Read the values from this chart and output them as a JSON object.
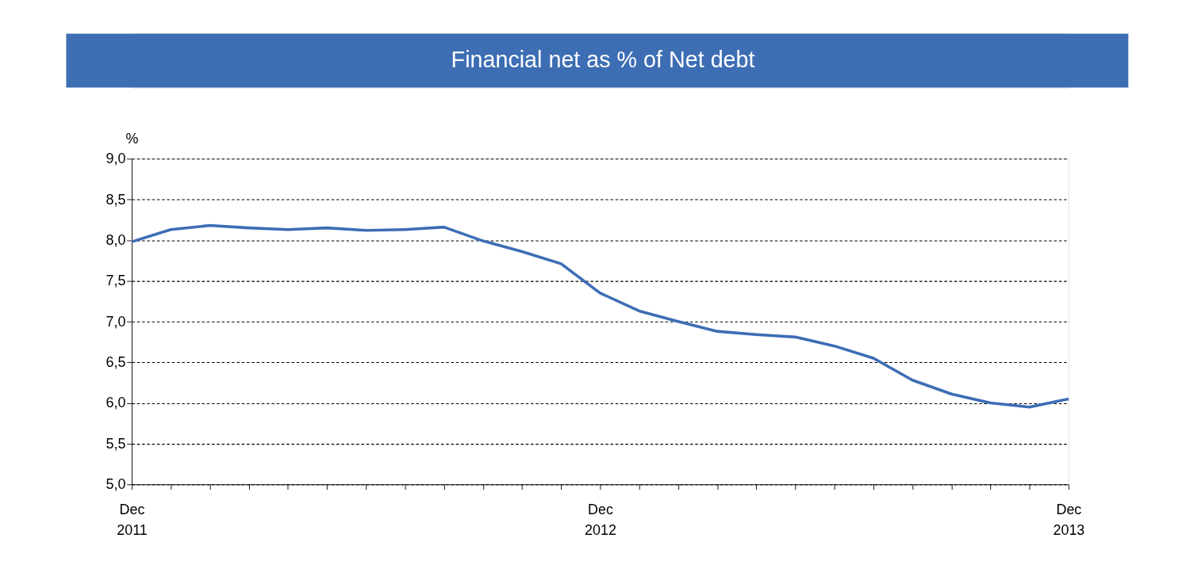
{
  "chart_data": {
    "type": "line",
    "title": "Financial net as % of Net debt",
    "ylabel": "%",
    "categories": [
      "Dec 2011",
      null,
      null,
      null,
      null,
      null,
      null,
      null,
      null,
      null,
      null,
      null,
      "Dec 2012",
      null,
      null,
      null,
      null,
      null,
      null,
      null,
      null,
      null,
      null,
      null,
      "Dec 2013"
    ],
    "series": [
      {
        "color": "#3d6db5",
        "values": [
          7.98,
          8.13,
          8.18,
          8.15,
          8.13,
          8.15,
          8.12,
          8.13,
          8.16,
          7.99,
          7.86,
          7.71,
          7.35,
          7.13,
          7.0,
          6.88,
          6.84,
          6.81,
          6.7,
          6.55,
          6.28,
          6.11,
          6.0,
          5.95,
          6.05
        ]
      }
    ],
    "ylim": [
      5,
      9
    ],
    "yticks": [
      {
        "value": 5,
        "label": "5,0"
      },
      {
        "value": 5.5,
        "label": "5,5"
      },
      {
        "value": 6,
        "label": "6,0"
      },
      {
        "value": 6.5,
        "label": "6,5"
      },
      {
        "value": 7,
        "label": "7,0"
      },
      {
        "value": 7.5,
        "label": "7,5"
      },
      {
        "value": 8,
        "label": "8,0"
      },
      {
        "value": 8.5,
        "label": "8,5"
      },
      {
        "value": 9,
        "label": "9,0"
      }
    ],
    "grid": "y",
    "legend": false,
    "marker": "none",
    "line_style": "solid"
  }
}
